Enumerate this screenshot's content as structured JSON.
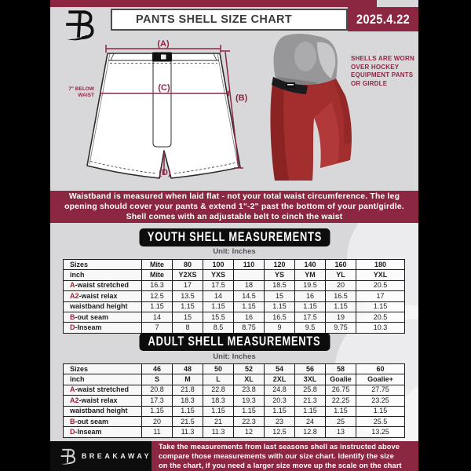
{
  "header": {
    "title": "PANTS SHELL SIZE CHART",
    "date": "2025.4.22",
    "logo_glyph": "B"
  },
  "diagram": {
    "label_a": "(A)",
    "label_b": "(B)",
    "label_c": "(C)",
    "label_d": "(D)",
    "waist_note_line1": "7\" BELOW",
    "waist_note_line2": "WAIST",
    "shell_note_lines": [
      "SHELLS ARE WORN",
      "OVER HOCKEY",
      "EQUIPMENT PANTS",
      "OR GIRDLE"
    ]
  },
  "notice": {
    "lines": [
      "Waistband is measured when laid flat - not your total waist circumference. The leg",
      "opening should cover your pants & extend 1\"-2\" past the bottom of your pant/girdle.",
      "Shell comes with an adjustable belt to cinch the waist"
    ]
  },
  "sections": [
    {
      "heading": "YOUTH SHELL MEASUREMENTS",
      "unit": "Unit: Inches",
      "rows": [
        {
          "prefix": "",
          "label": "Sizes",
          "header": true,
          "cells": [
            "Mite",
            "80",
            "100",
            "110",
            "120",
            "140",
            "160",
            "180"
          ]
        },
        {
          "prefix": "",
          "label": "inch",
          "header": true,
          "cells": [
            "Mite",
            "Y2XS",
            "YXS",
            "",
            "YS",
            "YM",
            "YL",
            "YXL"
          ]
        },
        {
          "prefix": "A",
          "label": "-waist stretched",
          "header": false,
          "cells": [
            "16.3",
            "17",
            "17.5",
            "18",
            "18.5",
            "19.5",
            "20",
            "20.5"
          ]
        },
        {
          "prefix": "A2",
          "label": "-waist relax",
          "header": false,
          "cells": [
            "12.5",
            "13.5",
            "14",
            "14.5",
            "15",
            "16",
            "16.5",
            "17"
          ]
        },
        {
          "prefix": "",
          "label": "waistband height",
          "header": false,
          "cells": [
            "1.15",
            "1.15",
            "1.15",
            "1.15",
            "1.15",
            "1.15",
            "1.15",
            "1.15"
          ]
        },
        {
          "prefix": "B",
          "label": "-out seam",
          "header": false,
          "cells": [
            "14",
            "15",
            "15.5",
            "16",
            "16.5",
            "17.5",
            "19",
            "20.5"
          ]
        },
        {
          "prefix": "D",
          "label": "-Inseam",
          "header": false,
          "cells": [
            "7",
            "8",
            "8.5",
            "8.75",
            "9",
            "9.5",
            "9.75",
            "10.3"
          ]
        }
      ]
    },
    {
      "heading": "ADULT SHELL MEASUREMENTS",
      "unit": "Unit: Inches",
      "rows": [
        {
          "prefix": "",
          "label": "Sizes",
          "header": true,
          "cells": [
            "46",
            "48",
            "50",
            "52",
            "54",
            "56",
            "58",
            "60"
          ]
        },
        {
          "prefix": "",
          "label": "inch",
          "header": true,
          "cells": [
            "S",
            "M",
            "L",
            "XL",
            "2XL",
            "3XL",
            "Goalie",
            "Goalie+"
          ]
        },
        {
          "prefix": "A",
          "label": "-waist stretched",
          "header": false,
          "cells": [
            "20.8",
            "21.8",
            "22.8",
            "23.8",
            "24.8",
            "25.8",
            "26.75",
            "27.75"
          ]
        },
        {
          "prefix": "A2",
          "label": "-waist relax",
          "header": false,
          "cells": [
            "17.3",
            "18.3",
            "18.3",
            "19.3",
            "20.3",
            "21.3",
            "22.25",
            "23.25"
          ]
        },
        {
          "prefix": "",
          "label": "waistband height",
          "header": false,
          "cells": [
            "1.15",
            "1.15",
            "1.15",
            "1.15",
            "1.15",
            "1.15",
            "1.15",
            "1.15"
          ]
        },
        {
          "prefix": "B",
          "label": "-out seam",
          "header": false,
          "cells": [
            "20",
            "21.5",
            "21",
            "22.3",
            "23",
            "24",
            "25",
            "25.5"
          ]
        },
        {
          "prefix": "D",
          "label": "-Inseam",
          "header": false,
          "cells": [
            "11",
            "11.3",
            "11.3",
            "12",
            "12.5",
            "12.8",
            "13",
            "13.25"
          ]
        }
      ]
    }
  ],
  "footer": {
    "brand": "BREAKAWAY",
    "lines": [
      "Take the measurements from last seasons shell as instructed above",
      "compare those measurements  with our size chart. Identify the size",
      "on the chart, if you need a larger size move up the scale on the chart"
    ]
  },
  "colors": {
    "maroon": "#8c2742",
    "banner_black": "#0d0d0d",
    "page_bg": "#d8d8db",
    "shell_red": "#a32e2e"
  }
}
